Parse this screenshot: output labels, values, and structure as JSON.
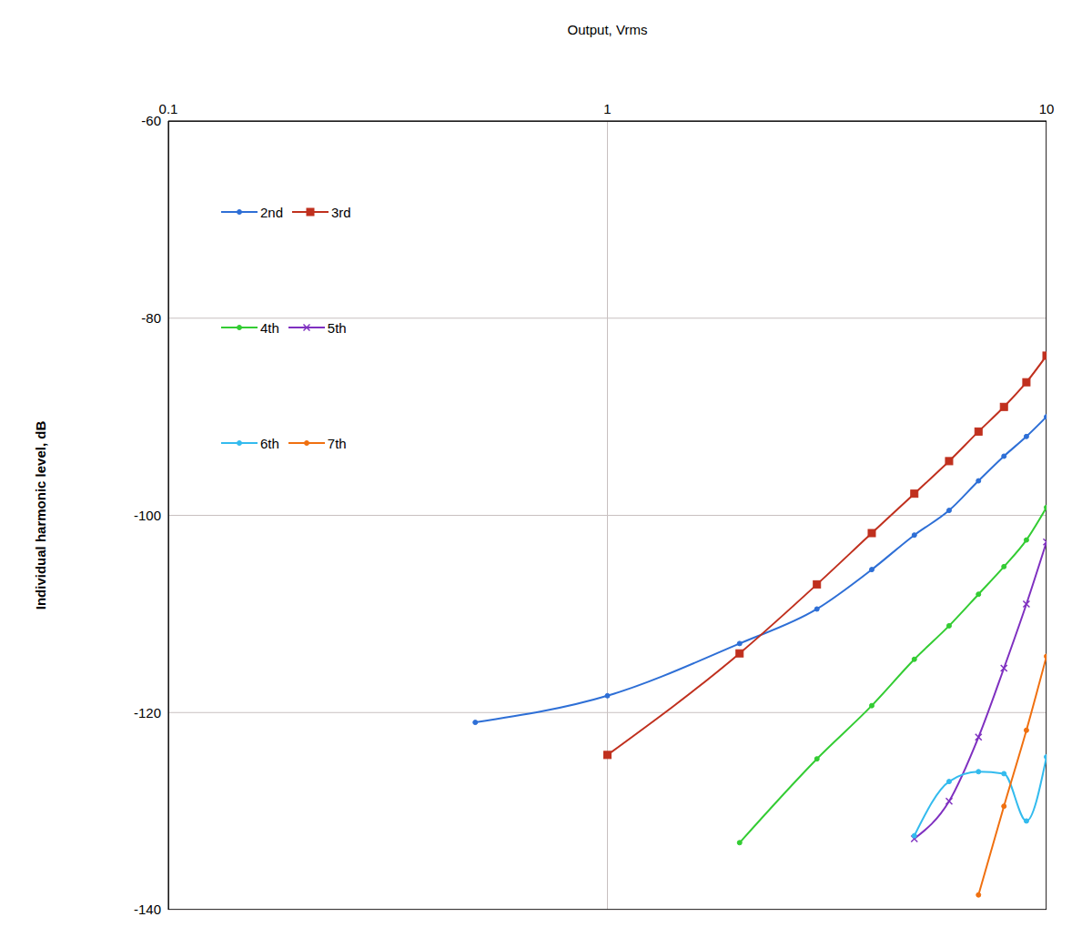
{
  "chart_data": {
    "type": "line",
    "x_label": "Output, Vrms",
    "y_label": "Individual harmonic level, dB",
    "x": [
      0.5,
      1,
      2,
      3,
      4,
      5,
      6,
      7,
      8,
      9,
      10
    ],
    "series": [
      {
        "name": "2nd",
        "color": "#2e6fd6",
        "marker": "circle",
        "values": [
          -121,
          -118.3,
          -113,
          -109.5,
          -105.5,
          -102,
          -99.5,
          -96.5,
          -94,
          -92,
          -90
        ]
      },
      {
        "name": "3rd",
        "color": "#c0301e",
        "marker": "square",
        "values": [
          null,
          -124.3,
          -114,
          -107,
          -101.8,
          -97.8,
          -94.5,
          -91.5,
          -89,
          -86.5,
          -83.8
        ]
      },
      {
        "name": "4th",
        "color": "#33cc33",
        "marker": "circle",
        "values": [
          null,
          null,
          -133.2,
          -124.7,
          -119.3,
          -114.6,
          -111.2,
          -108,
          -105.2,
          -102.5,
          -99.2
        ]
      },
      {
        "name": "5th",
        "color": "#7f30c0",
        "marker": "x",
        "values": [
          null,
          null,
          null,
          null,
          null,
          -132.8,
          -129,
          -122.5,
          -115.5,
          -109,
          -102.7
        ]
      },
      {
        "name": "6th",
        "color": "#33bbee",
        "marker": "circle",
        "values": [
          null,
          null,
          null,
          null,
          null,
          -132.5,
          -127,
          -126,
          -126.2,
          -131,
          -124.5
        ]
      },
      {
        "name": "7th",
        "color": "#f07010",
        "marker": "circle",
        "values": [
          null,
          null,
          null,
          null,
          null,
          null,
          null,
          -138.5,
          -129.5,
          -121.8,
          -114.3
        ]
      }
    ],
    "xlim": [
      0.1,
      10
    ],
    "xticks": [
      0.1,
      1,
      10
    ],
    "ylim": [
      -140,
      -60
    ],
    "yticks": [
      -140,
      -120,
      -100,
      -80,
      -60
    ],
    "log": "x",
    "grid": true,
    "legend": "upper left"
  }
}
